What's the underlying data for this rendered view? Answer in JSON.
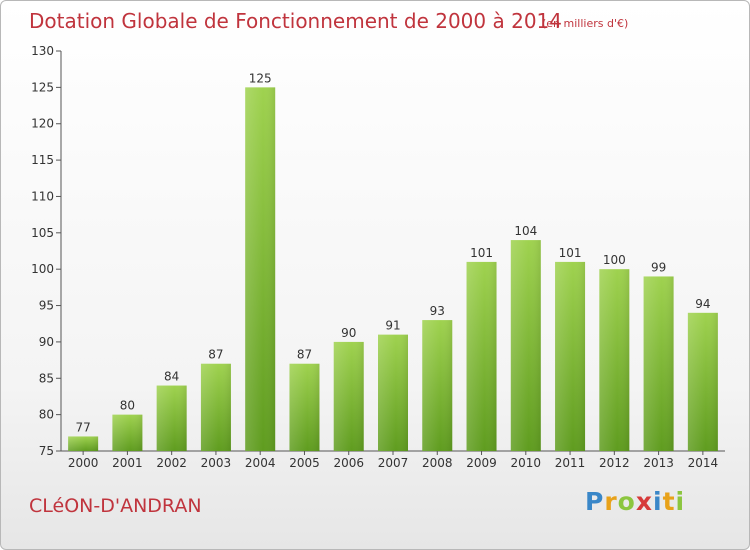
{
  "chart_data": {
    "type": "bar",
    "title": "Dotation Globale de Fonctionnement de 2000 à 2014",
    "unit_note": "(en milliers d'€)",
    "categories": [
      "2000",
      "2001",
      "2002",
      "2003",
      "2004",
      "2005",
      "2006",
      "2007",
      "2008",
      "2009",
      "2010",
      "2011",
      "2012",
      "2013",
      "2014"
    ],
    "values": [
      77,
      80,
      84,
      87,
      125,
      87,
      90,
      91,
      93,
      101,
      104,
      101,
      100,
      99,
      94
    ],
    "ylim": [
      75,
      130
    ],
    "yticks": [
      75,
      80,
      85,
      90,
      95,
      100,
      105,
      110,
      115,
      120,
      125,
      130
    ],
    "grid": false,
    "bar_color": "#7bc043"
  },
  "footer": {
    "commune": "CLéON-D'ANDRAN",
    "logo_letters": [
      "P",
      "r",
      "o",
      "x",
      "i",
      "t",
      "i"
    ],
    "logo_colors": [
      "#3a87c8",
      "#e8a21a",
      "#8cc63f",
      "#d63a3a",
      "#3a87c8",
      "#e8a21a",
      "#8cc63f"
    ]
  }
}
